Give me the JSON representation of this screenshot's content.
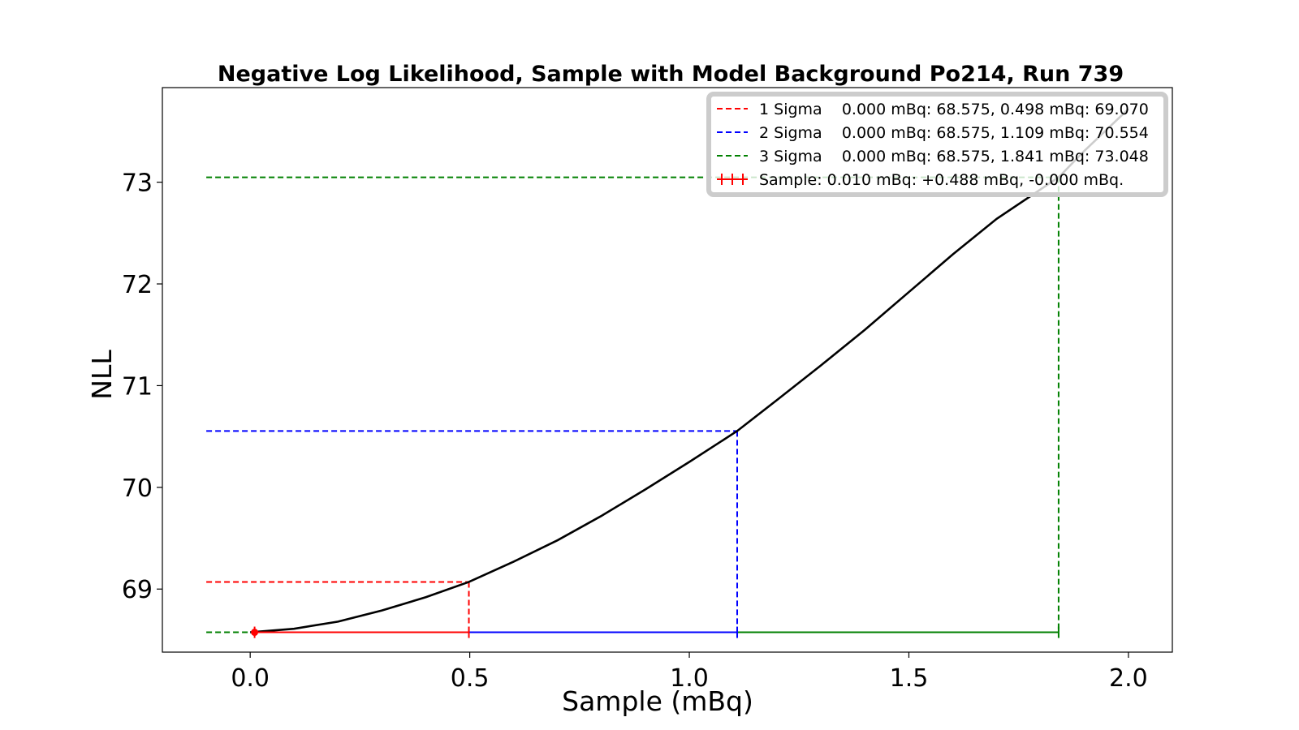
{
  "chart_data": {
    "type": "line",
    "title": "Negative Log Likelihood, Sample with Model Background Po214, Run 739",
    "xlabel": "Sample (mBq)",
    "ylabel": "NLL",
    "xlim": [
      -0.2,
      2.1
    ],
    "ylim": [
      68.38,
      73.93
    ],
    "xticks": [
      0.0,
      0.5,
      1.0,
      1.5,
      2.0
    ],
    "xtick_labels": [
      "0.0",
      "0.5",
      "1.0",
      "1.5",
      "2.0"
    ],
    "yticks": [
      69,
      70,
      71,
      72,
      73
    ],
    "ytick_labels": [
      "69",
      "70",
      "71",
      "72",
      "73"
    ],
    "grid": false,
    "legend_placement": "upper right",
    "curve": {
      "color": "#000000",
      "x": [
        0.0,
        0.1,
        0.2,
        0.3,
        0.4,
        0.498,
        0.6,
        0.7,
        0.8,
        0.9,
        1.0,
        1.109,
        1.2,
        1.3,
        1.4,
        1.5,
        1.6,
        1.7,
        1.841,
        1.9,
        2.0
      ],
      "y": [
        68.575,
        68.61,
        68.68,
        68.79,
        68.92,
        69.07,
        69.27,
        69.48,
        69.72,
        69.98,
        70.25,
        70.554,
        70.86,
        71.2,
        71.55,
        71.92,
        72.29,
        72.64,
        73.048,
        73.31,
        73.72
      ]
    },
    "sigma_lines": [
      {
        "label": "1 Sigma",
        "color": "#ff0000",
        "x_min": 0.0,
        "nll_min": 68.575,
        "x_upper": 0.498,
        "nll_upper": 69.07,
        "legend_text": "1 Sigma    0.000 mBq: 68.575, 0.498 mBq: 69.070"
      },
      {
        "label": "2 Sigma",
        "color": "#0000ff",
        "x_min": 0.0,
        "nll_min": 68.575,
        "x_upper": 1.109,
        "nll_upper": 70.554,
        "legend_text": "2 Sigma    0.000 mBq: 68.575, 1.109 mBq: 70.554"
      },
      {
        "label": "3 Sigma",
        "color": "#008000",
        "x_min": 0.0,
        "nll_min": 68.575,
        "x_upper": 1.841,
        "nll_upper": 73.048,
        "legend_text": "3 Sigma    0.000 mBq: 68.575, 1.841 mBq: 73.048"
      }
    ],
    "sample_point": {
      "x": 0.01,
      "y": 68.575,
      "err_plus": 0.488,
      "err_minus": 0.0,
      "color": "#ff0000",
      "legend_text": "Sample: 0.010 mBq: +0.488 mBq, -0.000 mBq."
    },
    "dashed_line_x_start": -0.1
  }
}
